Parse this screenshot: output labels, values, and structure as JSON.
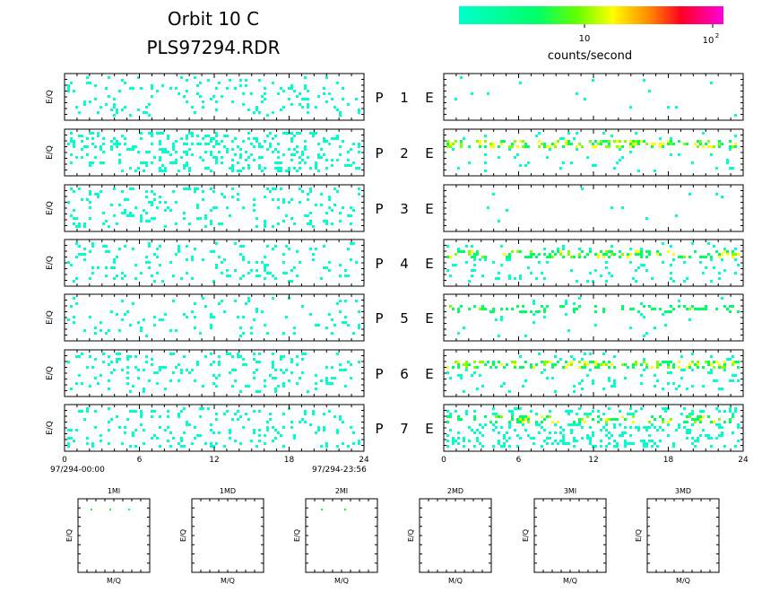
{
  "header": {
    "title_line1": "Orbit 10 C",
    "title_line2": "PLS97294.RDR"
  },
  "colorbar": {
    "tick1": "10",
    "tick2_base": "10",
    "tick2_exp": "2",
    "label": "counts/second",
    "colors": [
      "#00ffcc",
      "#00ff55",
      "#88ff00",
      "#ffff00",
      "#ff8800",
      "#ff0033",
      "#ff00cc"
    ]
  },
  "panels": {
    "ylabel": "E/Q",
    "rows": [
      {
        "p": "P",
        "n": "1",
        "e": "E"
      },
      {
        "p": "P",
        "n": "2",
        "e": "E"
      },
      {
        "p": "P",
        "n": "3",
        "e": "E"
      },
      {
        "p": "P",
        "n": "4",
        "e": "E"
      },
      {
        "p": "P",
        "n": "5",
        "e": "E"
      },
      {
        "p": "P",
        "n": "6",
        "e": "E"
      },
      {
        "p": "P",
        "n": "7",
        "e": "E"
      }
    ],
    "xticks": [
      "0",
      "6",
      "12",
      "18",
      "24"
    ],
    "start_time": "97/294-00:00",
    "end_time": "97/294-23:56"
  },
  "mass_panels": {
    "ylabel": "E/Q",
    "xlabel": "M/Q",
    "titles": [
      "1MI",
      "1MD",
      "2MI",
      "2MD",
      "3MI",
      "3MD"
    ]
  },
  "chart_data": {
    "type": "heatmap",
    "title": "Orbit 10 C PLS97294.RDR",
    "xlabel": "",
    "ylabel": "E/Q",
    "xlim": [
      0,
      24
    ],
    "x_ticks": [
      0,
      6,
      12,
      18,
      24
    ],
    "color_scale": {
      "label": "counts/second",
      "scale": "log",
      "range": [
        1,
        100
      ]
    },
    "left_column": {
      "label": "P",
      "panels": [
        "P 1",
        "P 2",
        "P 3",
        "P 4",
        "P 5",
        "P 6",
        "P 7"
      ],
      "density": [
        0.18,
        0.42,
        0.22,
        0.2,
        0.12,
        0.2,
        0.22
      ]
    },
    "right_column": {
      "label": "E",
      "panels": [
        "E 1",
        "E 2",
        "E 3",
        "E 4",
        "E 5",
        "E 6",
        "E 7"
      ],
      "density": [
        0.03,
        0.1,
        0.02,
        0.16,
        0.04,
        0.14,
        0.45
      ],
      "band_level": [
        0.08,
        0.55,
        0.02,
        0.4,
        0.12,
        0.55,
        0.3
      ]
    },
    "mass_panels": [
      "1MI",
      "1MD",
      "2MI",
      "2MD",
      "3MI",
      "3MD"
    ]
  }
}
